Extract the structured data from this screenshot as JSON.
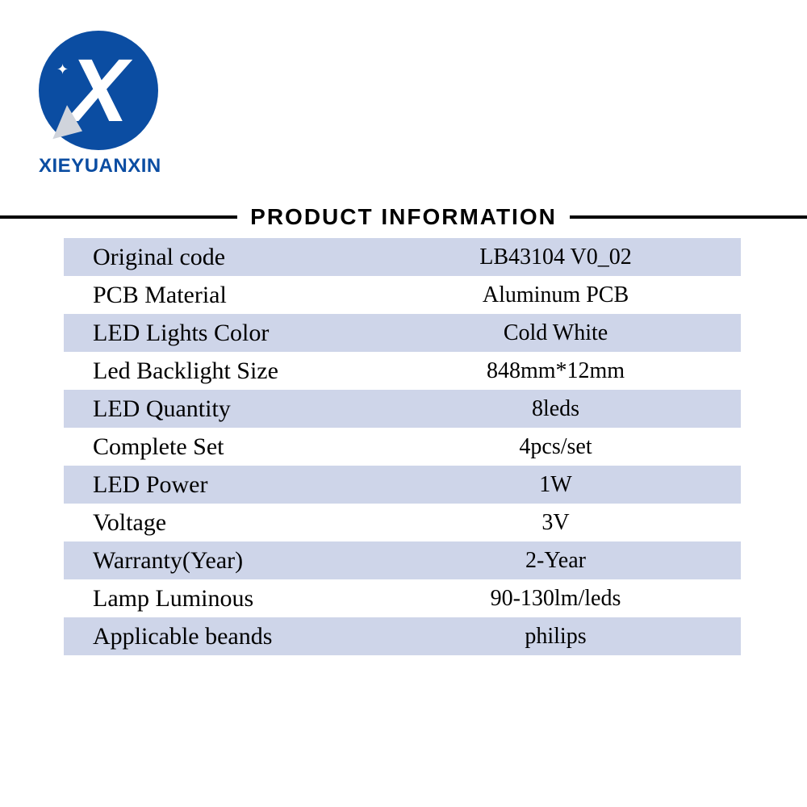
{
  "brand": {
    "name": "XIEYUANXIN",
    "logo_letter": "X",
    "logo_bg_color": "#0b4da2",
    "logo_text_color": "#ffffff"
  },
  "section_title": "PRODUCT INFORMATION",
  "table": {
    "stripe_color": "#ced5e9",
    "plain_color": "#ffffff",
    "label_fontsize": 30,
    "value_fontsize": 28,
    "rows": [
      {
        "label": "Original code",
        "value": "LB43104 V0_02"
      },
      {
        "label": "PCB Material",
        "value": "Aluminum PCB"
      },
      {
        "label": "LED Lights Color",
        "value": "Cold White"
      },
      {
        "label": "Led Backlight Size",
        "value": "848mm*12mm"
      },
      {
        "label": "LED Quantity",
        "value": "8leds"
      },
      {
        "label": "Complete Set",
        "value": "4pcs/set"
      },
      {
        "label": "LED Power",
        "value": "1W"
      },
      {
        "label": "Voltage",
        "value": "3V"
      },
      {
        "label": "Warranty(Year)",
        "value": "2-Year"
      },
      {
        "label": "Lamp Luminous",
        "value": "90-130lm/leds"
      },
      {
        "label": "Applicable beands",
        "value": "philips"
      }
    ]
  }
}
